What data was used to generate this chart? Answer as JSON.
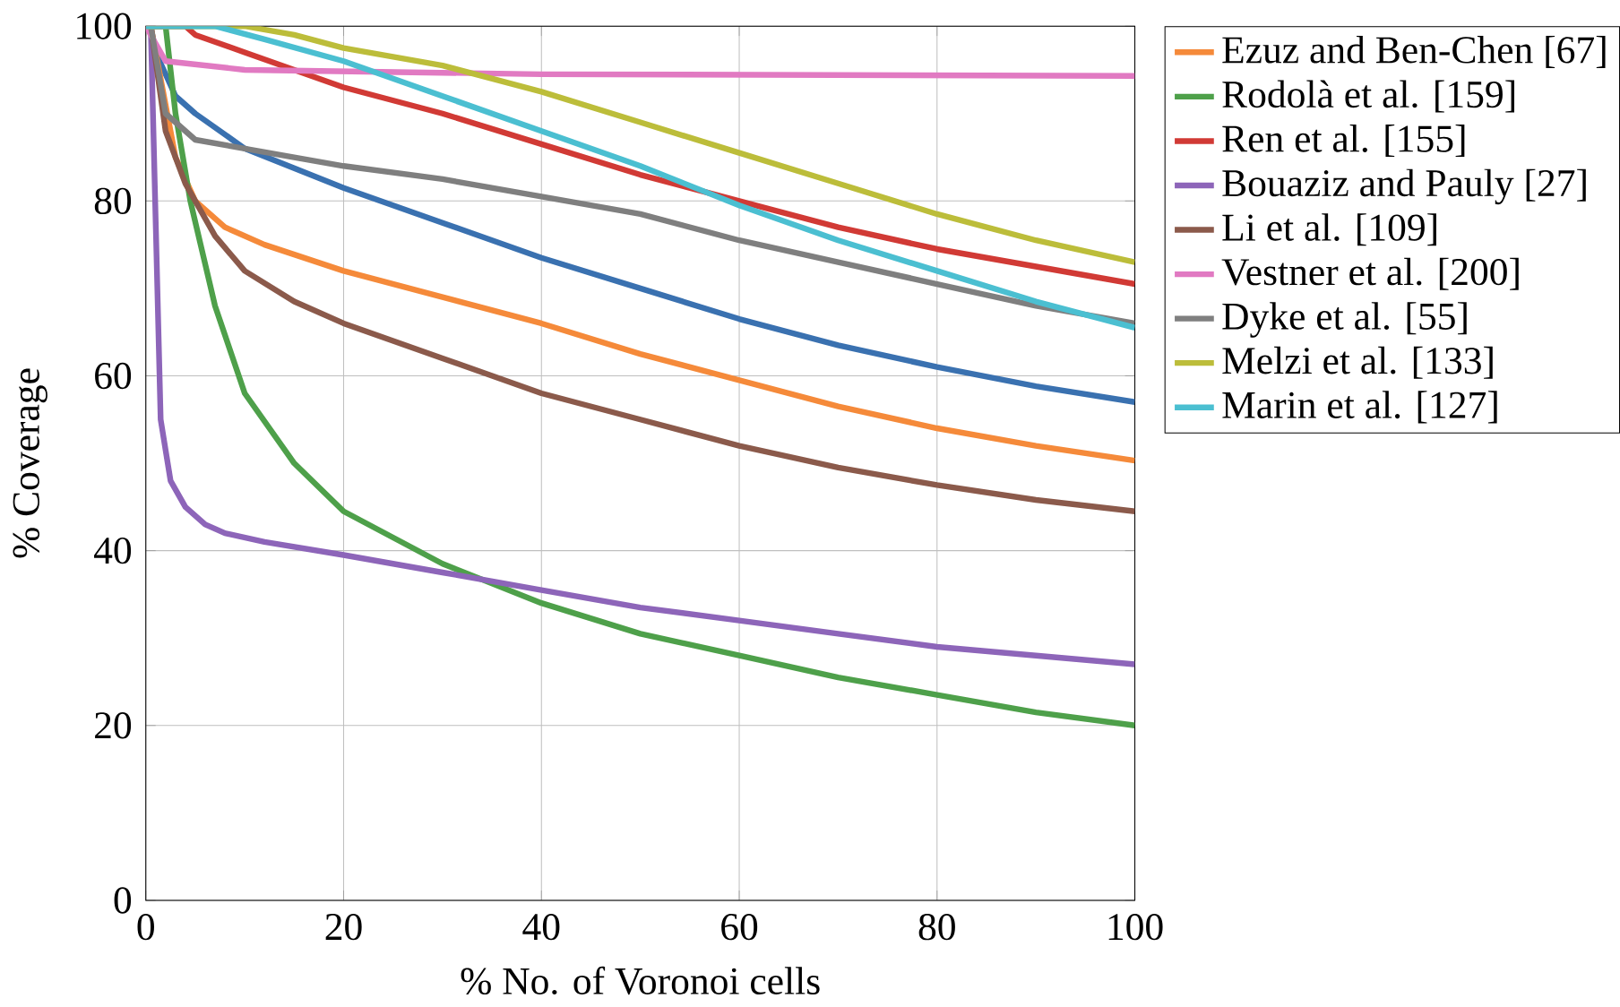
{
  "chart_data": {
    "type": "line",
    "xlabel": "% No. of Voronoi cells",
    "ylabel": "% Coverage",
    "xlim": [
      0,
      100
    ],
    "ylim": [
      0,
      100
    ],
    "xticks": [
      0,
      20,
      40,
      60,
      80,
      100
    ],
    "yticks": [
      0,
      20,
      40,
      60,
      80,
      100
    ],
    "grid": true,
    "legend": "right",
    "marker": "none",
    "line_style": "solid",
    "series": [
      {
        "color": "#3a71b0",
        "x": [
          0.5,
          1,
          3,
          5,
          10,
          20,
          30,
          40,
          50,
          60,
          70,
          80,
          90,
          100
        ],
        "values": [
          100,
          97,
          92,
          90,
          86,
          81.5,
          77.5,
          73.5,
          70,
          66.5,
          63.5,
          61,
          58.8,
          57
        ]
      },
      {
        "name": "Ezuz and Ben-Chen [67]",
        "color": "#f58a3a",
        "x": [
          0.5,
          3,
          5,
          8,
          12,
          20,
          30,
          40,
          50,
          60,
          70,
          80,
          90,
          100
        ],
        "values": [
          100,
          85,
          80,
          77,
          75,
          72,
          69,
          66,
          62.5,
          59.5,
          56.5,
          54,
          52,
          50.3
        ]
      },
      {
        "name": "Rodolà et al. [159]",
        "color": "#4ea04a",
        "x": [
          0,
          2,
          3,
          4.5,
          7,
          10,
          15,
          20,
          30,
          40,
          50,
          60,
          70,
          80,
          90,
          100
        ],
        "values": [
          100,
          100,
          90,
          80,
          68,
          58,
          50,
          44.5,
          38.5,
          34,
          30.5,
          28,
          25.5,
          23.5,
          21.5,
          20
        ]
      },
      {
        "name": "Ren et al. [155]",
        "color": "#d13a35",
        "x": [
          0,
          4,
          5,
          10,
          20,
          30,
          40,
          50,
          60,
          70,
          80,
          90,
          100
        ],
        "values": [
          100,
          100,
          99,
          97,
          93,
          90,
          86.5,
          83,
          80,
          77,
          74.5,
          72.5,
          70.5
        ]
      },
      {
        "name": "Bouaziz and Pauly [27]",
        "color": "#8d65b9",
        "x": [
          0.5,
          1.5,
          2.5,
          4,
          6,
          8,
          12,
          20,
          30,
          40,
          50,
          60,
          70,
          80,
          90,
          100
        ],
        "values": [
          100,
          55,
          48,
          45,
          43,
          42,
          41,
          39.5,
          37.5,
          35.5,
          33.5,
          32,
          30.5,
          29,
          28,
          27
        ]
      },
      {
        "name": "Li et al. [109]",
        "color": "#8b5a4b",
        "x": [
          0.5,
          2,
          4,
          7,
          10,
          15,
          20,
          30,
          40,
          50,
          60,
          70,
          80,
          90,
          100
        ],
        "values": [
          100,
          88,
          82,
          76,
          72,
          68.5,
          66,
          62,
          58,
          55,
          52,
          49.5,
          47.5,
          45.8,
          44.5
        ]
      },
      {
        "name": "Vestner et al. [200]",
        "color": "#e17ac2",
        "x": [
          0,
          2,
          10,
          40,
          100
        ],
        "values": [
          100,
          96,
          95,
          94.5,
          94.3
        ]
      },
      {
        "name": "Dyke et al. [55]",
        "color": "#7f7f7f",
        "x": [
          0.5,
          2,
          5,
          10,
          15,
          20,
          30,
          40,
          50,
          60,
          70,
          80,
          90,
          100
        ],
        "values": [
          100,
          90,
          87,
          86,
          85,
          84,
          82.5,
          80.5,
          78.5,
          75.5,
          73,
          70.5,
          68,
          66
        ]
      },
      {
        "name": "Melzi et al. [133]",
        "color": "#bcbd3a",
        "x": [
          0,
          10,
          15,
          20,
          30,
          40,
          50,
          60,
          70,
          80,
          90,
          100
        ],
        "values": [
          100,
          100,
          99,
          97.5,
          95.5,
          92.5,
          89,
          85.5,
          82,
          78.5,
          75.5,
          73
        ]
      },
      {
        "name": "Marin et al. [127]",
        "color": "#4bbfd1",
        "x": [
          0,
          7,
          12,
          20,
          30,
          40,
          50,
          60,
          70,
          80,
          90,
          100
        ],
        "values": [
          100,
          100,
          98.5,
          96,
          92,
          88,
          84,
          79.5,
          75.5,
          72,
          68.5,
          65.5
        ]
      }
    ]
  }
}
